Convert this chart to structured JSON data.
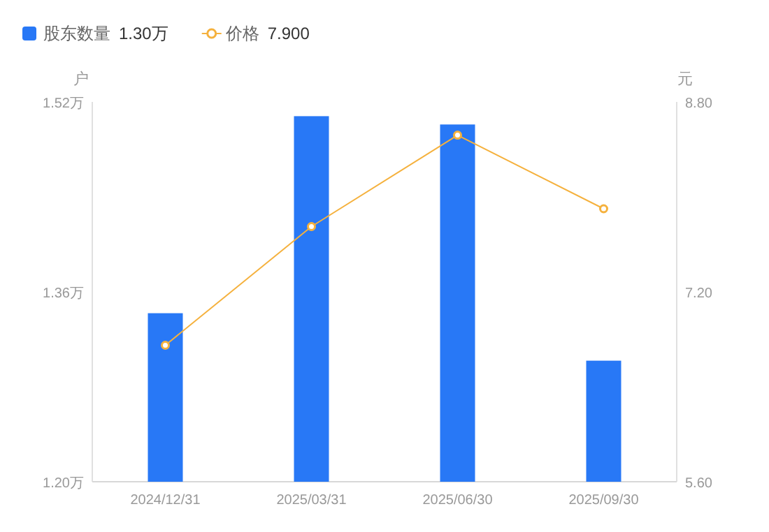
{
  "chart_data": {
    "type": "bar",
    "categories": [
      "2024/12/31",
      "2025/03/31",
      "2025/06/30",
      "2025/09/30"
    ],
    "ylabel": "户",
    "y2label": "元",
    "ylim": [
      1.2,
      1.52
    ],
    "yticks": [
      {
        "value": 1.2,
        "label": "1.20万"
      },
      {
        "value": 1.36,
        "label": "1.36万"
      },
      {
        "value": 1.52,
        "label": "1.52万"
      }
    ],
    "y2lim": [
      5.6,
      8.8
    ],
    "y2ticks": [
      {
        "value": 5.6,
        "label": "5.60"
      },
      {
        "value": 7.2,
        "label": "7.20"
      },
      {
        "value": 8.8,
        "label": "8.80"
      }
    ],
    "series": [
      {
        "name": "股东数量",
        "color": "#2878f6",
        "values": [
          1.342,
          1.508,
          1.501,
          1.302
        ]
      },
      {
        "name": "价格",
        "type": "line",
        "color": "#f5b13d",
        "axis": "y2",
        "marker": "circle",
        "line_style": "solid",
        "values": [
          6.75,
          7.75,
          8.52,
          7.9
        ]
      }
    ],
    "annotations": [
      "1.30万",
      "7.900"
    ],
    "legend": "top left",
    "grid": false
  }
}
